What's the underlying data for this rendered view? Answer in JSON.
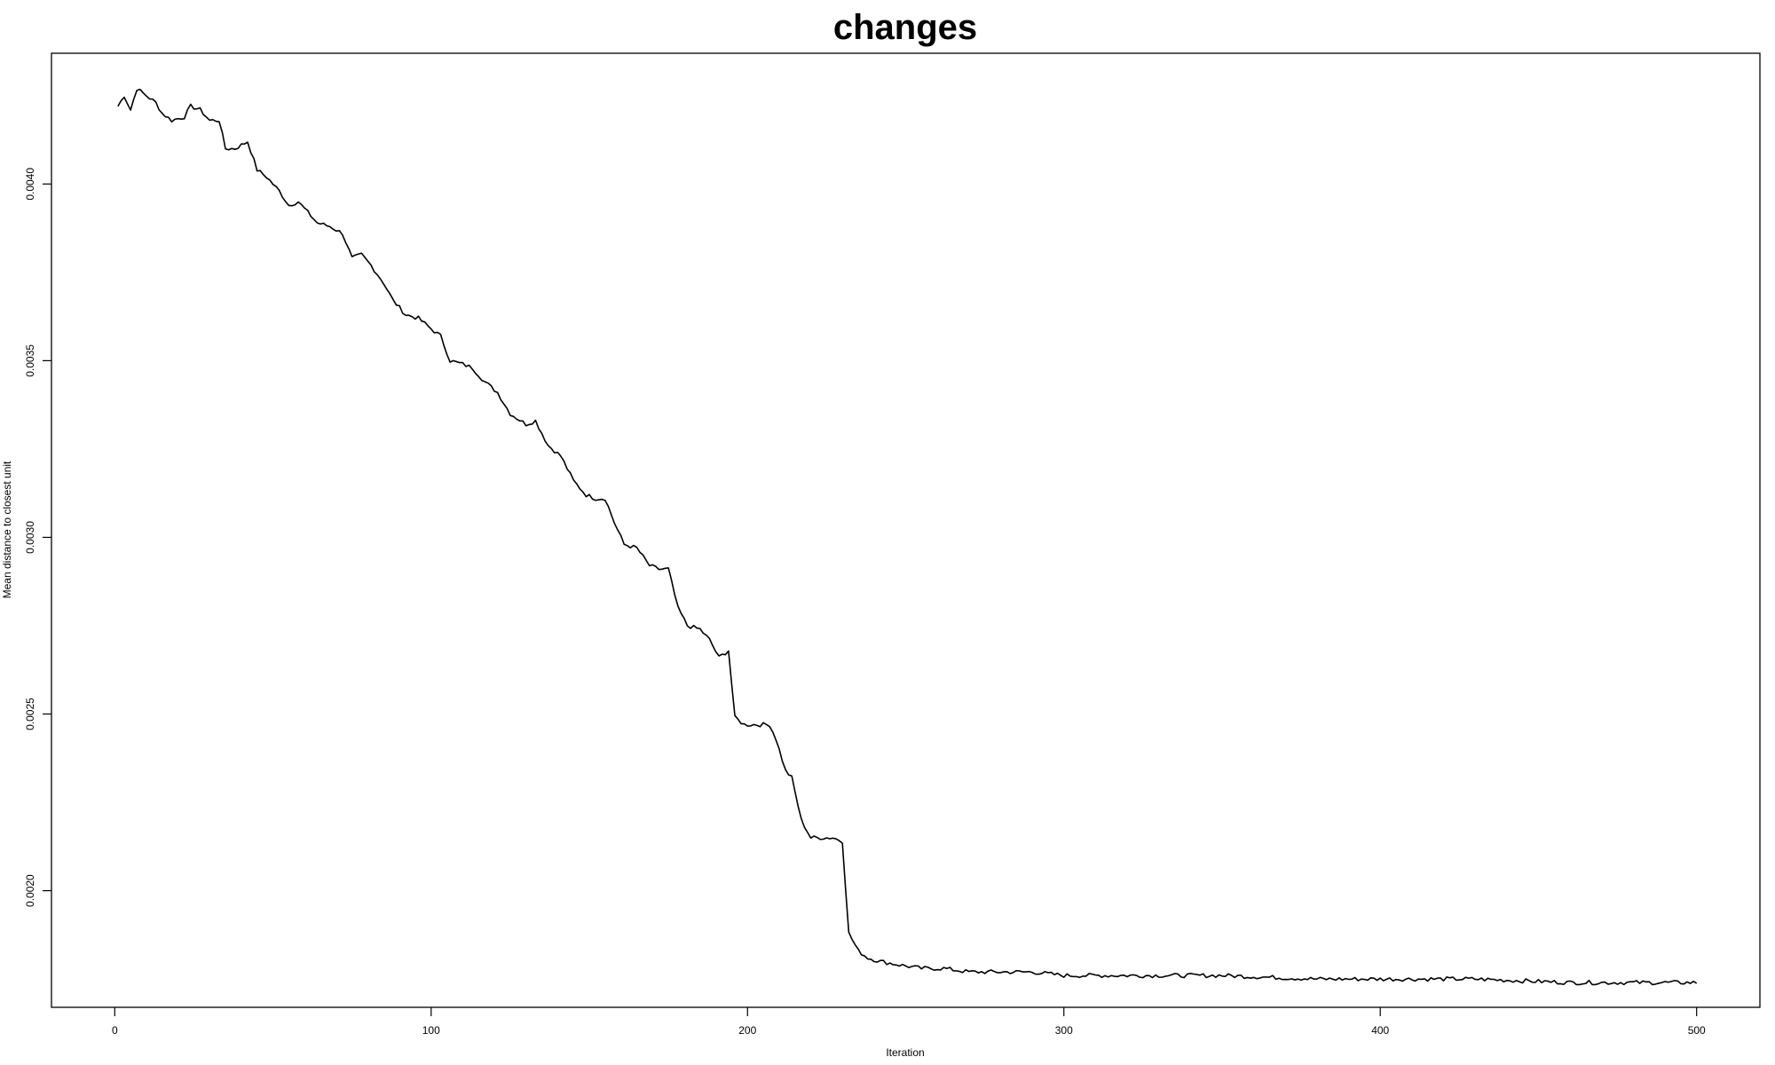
{
  "chart_data": {
    "type": "line",
    "title": "changes",
    "xlabel": "Iteration",
    "ylabel": "Mean distance to closest unit",
    "xlim": [
      -20,
      520
    ],
    "ylim": [
      0.00167,
      0.00437
    ],
    "x_ticks": [
      0,
      100,
      200,
      300,
      400,
      500
    ],
    "x_tick_labels": [
      "0",
      "100",
      "200",
      "300",
      "400",
      "500"
    ],
    "y_ticks": [
      0.002,
      0.0025,
      0.003,
      0.0035,
      0.004
    ],
    "y_tick_labels": [
      "0.0020",
      "0.0025",
      "0.0030",
      "0.0035",
      "0.0040"
    ],
    "grid": false,
    "legend": "none",
    "line_color": "#000000",
    "series": [
      {
        "x_start": 1,
        "x_step": 1,
        "anchors": [
          [
            1,
            0.00422
          ],
          [
            3,
            0.00425
          ],
          [
            5,
            0.00421
          ],
          [
            7,
            0.00427
          ],
          [
            10,
            0.00425
          ],
          [
            13,
            0.00423
          ],
          [
            15,
            0.0042
          ],
          [
            18,
            0.00418
          ],
          [
            22,
            0.00419
          ],
          [
            24,
            0.00422
          ],
          [
            27,
            0.00421
          ],
          [
            30,
            0.00418
          ],
          [
            33,
            0.00418
          ],
          [
            35,
            0.0041
          ],
          [
            38,
            0.0041
          ],
          [
            42,
            0.00412
          ],
          [
            45,
            0.00404
          ],
          [
            48,
            0.00402
          ],
          [
            52,
            0.00398
          ],
          [
            55,
            0.00394
          ],
          [
            58,
            0.00395
          ],
          [
            61,
            0.00392
          ],
          [
            64,
            0.00389
          ],
          [
            68,
            0.00388
          ],
          [
            72,
            0.00386
          ],
          [
            75,
            0.00379
          ],
          [
            78,
            0.0038
          ],
          [
            81,
            0.00377
          ],
          [
            85,
            0.00372
          ],
          [
            88,
            0.00367
          ],
          [
            92,
            0.00363
          ],
          [
            96,
            0.00362
          ],
          [
            100,
            0.00359
          ],
          [
            103,
            0.00357
          ],
          [
            106,
            0.0035
          ],
          [
            110,
            0.00349
          ],
          [
            113,
            0.00348
          ],
          [
            117,
            0.00344
          ],
          [
            121,
            0.00341
          ],
          [
            125,
            0.00335
          ],
          [
            130,
            0.00332
          ],
          [
            133,
            0.00333
          ],
          [
            137,
            0.00326
          ],
          [
            141,
            0.00323
          ],
          [
            145,
            0.00316
          ],
          [
            149,
            0.00312
          ],
          [
            152,
            0.00311
          ],
          [
            155,
            0.00311
          ],
          [
            158,
            0.00304
          ],
          [
            161,
            0.00298
          ],
          [
            165,
            0.00297
          ],
          [
            169,
            0.00292
          ],
          [
            172,
            0.00291
          ],
          [
            175,
            0.00291
          ],
          [
            178,
            0.0028
          ],
          [
            181,
            0.00275
          ],
          [
            185,
            0.00274
          ],
          [
            188,
            0.00271
          ],
          [
            191,
            0.00266
          ],
          [
            194,
            0.00268
          ],
          [
            196,
            0.00249
          ],
          [
            199,
            0.00247
          ],
          [
            203,
            0.00247
          ],
          [
            207,
            0.00247
          ],
          [
            209,
            0.00243
          ],
          [
            212,
            0.00234
          ],
          [
            214,
            0.00232
          ],
          [
            217,
            0.0022
          ],
          [
            220,
            0.00215
          ],
          [
            223,
            0.00215
          ],
          [
            227,
            0.00215
          ],
          [
            230,
            0.00214
          ],
          [
            232,
            0.00188
          ],
          [
            235,
            0.00183
          ],
          [
            238,
            0.00181
          ],
          [
            242,
            0.0018
          ],
          [
            248,
            0.00179
          ],
          [
            255,
            0.00178
          ],
          [
            262,
            0.00178
          ],
          [
            270,
            0.00177
          ],
          [
            280,
            0.00177
          ],
          [
            290,
            0.00177
          ],
          [
            300,
            0.00176
          ],
          [
            320,
            0.00176
          ],
          [
            350,
            0.00176
          ],
          [
            380,
            0.00175
          ],
          [
            400,
            0.00175
          ],
          [
            430,
            0.00175
          ],
          [
            460,
            0.00174
          ],
          [
            480,
            0.00174
          ],
          [
            500,
            0.00174
          ]
        ],
        "noise_amplitude": 1.2e-05
      }
    ]
  }
}
